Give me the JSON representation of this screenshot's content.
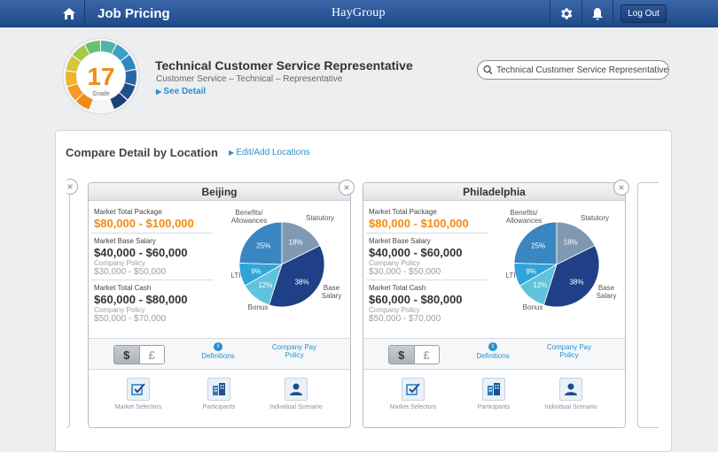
{
  "header": {
    "title": "Job Pricing",
    "brand": "HayGroup",
    "logout_label": "Log Out"
  },
  "job": {
    "grade_number": "17",
    "grade_label": "Grade",
    "title": "Technical Customer Service Representative",
    "subtitle": "Customer Service – Technical – Representative",
    "see_detail": "See Detail"
  },
  "search": {
    "value": "Technical Customer Service Representative"
  },
  "compare": {
    "title": "Compare Detail by Location",
    "edit_link": "Edit/Add Locations"
  },
  "colors": {
    "accent_blue": "#2a8fd0",
    "orange": "#f28a15",
    "header_blue": "#2c5b9e"
  },
  "locations": [
    {
      "name": "Beijing",
      "market_total_package_label": "Market Total Package",
      "market_total_package": "$80,000 - $100,000",
      "market_base_salary_label": "Market Base Salary",
      "market_base_salary": "$40,000 - $60,000",
      "policy_label_1": "Company Policy",
      "policy_base": "$30,000 - $50,000",
      "market_total_cash_label": "Market Total Cash",
      "market_total_cash": "$60,000 - $80,000",
      "policy_label_2": "Company Policy",
      "policy_cash": "$50,000 - $70,000",
      "pie": {
        "labels": [
          "Benefits/ Allowances",
          "Statutory",
          "Base Salary",
          "Bonus",
          "LTI"
        ],
        "values": [
          25,
          18,
          38,
          12,
          9
        ]
      }
    },
    {
      "name": "Philadelphia",
      "market_total_package_label": "Market Total Package",
      "market_total_package": "$80,000 - $100,000",
      "market_base_salary_label": "Market Base Salary",
      "market_base_salary": "$40,000 - $60,000",
      "policy_label_1": "Company Policy",
      "policy_base": "$30,000 - $50,000",
      "market_total_cash_label": "Market Total Cash",
      "market_total_cash": "$60,000 - $80,000",
      "policy_label_2": "Company Policy",
      "policy_cash": "$50,000 - $70,000",
      "pie": {
        "labels": [
          "Benefits/ Allowances",
          "Statutory",
          "Base Salary",
          "Bonus",
          "LTI"
        ],
        "values": [
          25,
          18,
          38,
          12,
          9
        ]
      }
    }
  ],
  "card_controls": {
    "currency_dollar": "$",
    "currency_pound": "£",
    "definitions": "Definitions",
    "company_pay_policy": "Company Pay Policy",
    "tools": [
      "Market Selectors",
      "Participants",
      "Individual Scenario"
    ]
  }
}
